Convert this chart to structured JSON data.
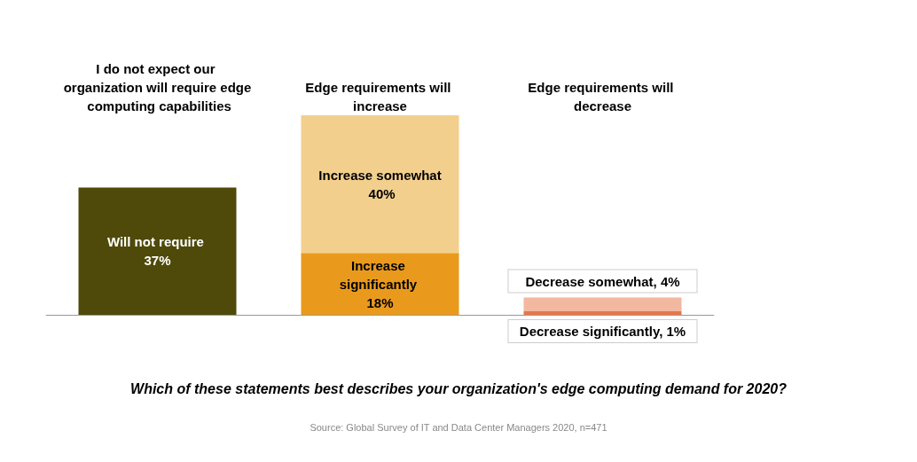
{
  "chart_data": {
    "type": "bar",
    "stacked": true,
    "categories": [
      "I do not expect our organization will require edge computing capabilities",
      "Edge requirements will increase",
      "Edge requirements will decrease"
    ],
    "series": [
      {
        "colors": [
          "#4f4a0a",
          "#e99a1d",
          "#e8764a"
        ],
        "values": [
          37,
          18,
          1
        ],
        "value_labels": [
          "Will not require 37%",
          "Increase significantly 18%",
          "Decrease significantly, 1%"
        ]
      },
      {
        "colors": [
          null,
          "#f3cf8e",
          "#f2b9a0"
        ],
        "values": [
          null,
          40,
          4
        ],
        "value_labels": [
          null,
          "Increase somewhat 40%",
          "Decrease somewhat, 4%"
        ]
      }
    ],
    "xlabel": "Which of these statements best describes your organization's edge computing demand for 2020?",
    "annotations": [
      "Source: Global Survey of IT and Data Center Managers 2020, n=471"
    ],
    "tick_labels": "x"
  }
}
